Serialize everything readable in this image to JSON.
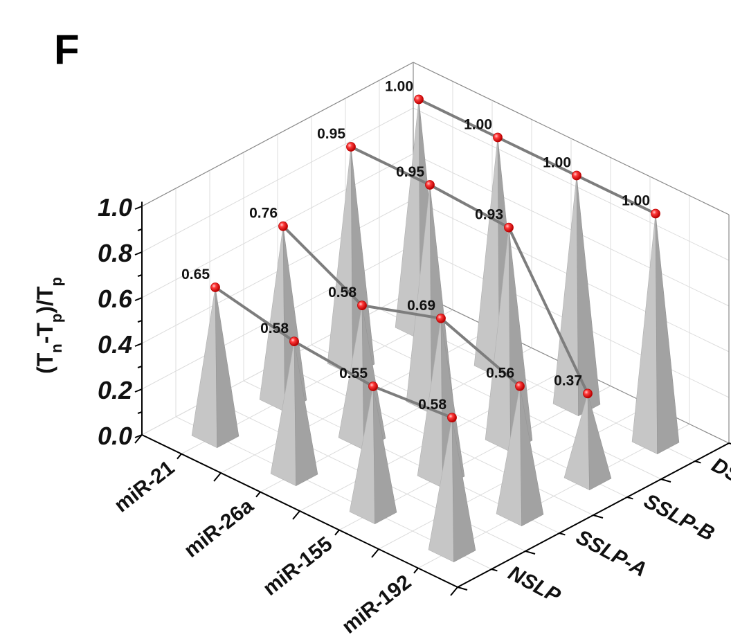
{
  "chart_data": {
    "type": "bar",
    "panel_label": "F",
    "zlabel": "(T_n-T_p)/T_p",
    "zlabel_parts": [
      "(T",
      "n",
      "-T",
      "p",
      ")/T",
      "p"
    ],
    "zlim": [
      0,
      1.0
    ],
    "z_ticks": [
      "0.0",
      "0.2",
      "0.4",
      "0.6",
      "0.8",
      "1.0"
    ],
    "x_categories": [
      "miR-21",
      "miR-26a",
      "miR-155",
      "miR-192"
    ],
    "y_categories": [
      "NSLP",
      "SSLP-A",
      "SSLP-B",
      "DSLP"
    ],
    "series": [
      {
        "name": "NSLP",
        "values": [
          0.65,
          0.58,
          0.55,
          0.58
        ],
        "labels": [
          "0.65",
          "0.58",
          "0.55",
          "0.58"
        ]
      },
      {
        "name": "SSLP-A",
        "values": [
          0.76,
          0.58,
          0.69,
          0.56
        ],
        "labels": [
          "0.76",
          "0.58",
          "0.69",
          "0.56"
        ]
      },
      {
        "name": "SSLP-B",
        "values": [
          0.95,
          0.95,
          0.93,
          0.37
        ],
        "labels": [
          "0.95",
          "0.95",
          "0.93",
          "0.37"
        ]
      },
      {
        "name": "DSLP",
        "values": [
          1.0,
          1.0,
          1.0,
          1.0
        ],
        "labels": [
          "1.00",
          "1.00",
          "1.00",
          "1.00"
        ]
      }
    ],
    "bar_shape": "cone",
    "bar_color": "#b8b8b8",
    "marker_color": "#ff2020",
    "line_color": "#808080",
    "grid": true
  }
}
